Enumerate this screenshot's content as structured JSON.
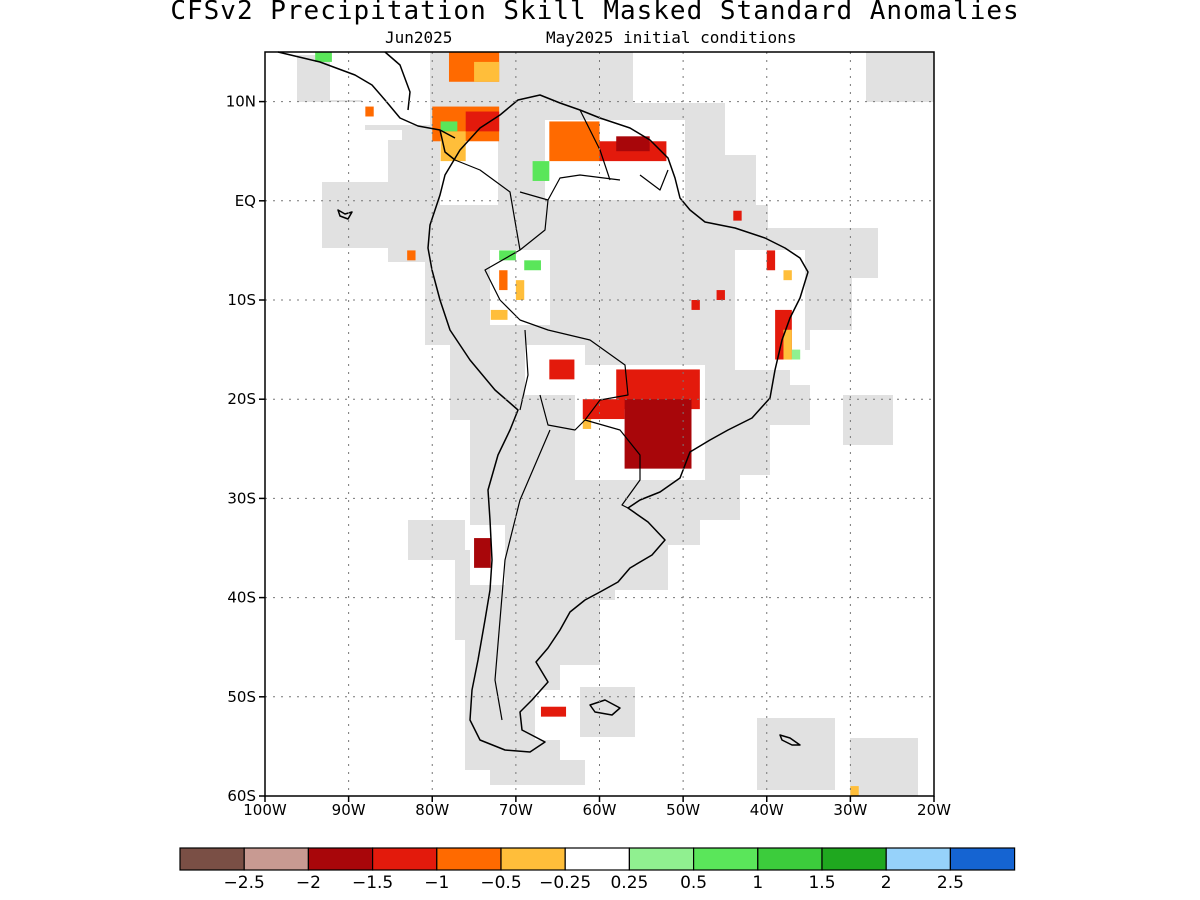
{
  "title": "CFSv2 Precipitation Skill Masked Standard Anomalies",
  "subtitle": {
    "target_month": "Jun2025",
    "initial_conditions": "May2025 initial conditions"
  },
  "map": {
    "region": "South America",
    "lon_range": [
      -100,
      -20
    ],
    "lat_range": [
      -60,
      15
    ],
    "lon_ticks": [
      {
        "lon": -100,
        "label": "100W"
      },
      {
        "lon": -90,
        "label": "90W"
      },
      {
        "lon": -80,
        "label": "80W"
      },
      {
        "lon": -70,
        "label": "70W"
      },
      {
        "lon": -60,
        "label": "60W"
      },
      {
        "lon": -50,
        "label": "50W"
      },
      {
        "lon": -40,
        "label": "40W"
      },
      {
        "lon": -30,
        "label": "30W"
      },
      {
        "lon": -20,
        "label": "20W"
      }
    ],
    "lat_ticks": [
      {
        "lat": 10,
        "label": "10N"
      },
      {
        "lat": 0,
        "label": "EQ"
      },
      {
        "lat": -10,
        "label": "10S"
      },
      {
        "lat": -20,
        "label": "20S"
      },
      {
        "lat": -30,
        "label": "30S"
      },
      {
        "lat": -40,
        "label": "40S"
      },
      {
        "lat": -50,
        "label": "50S"
      },
      {
        "lat": -60,
        "label": "60S"
      }
    ],
    "mask_color": "#e1e1e1",
    "coast_color": "#000000"
  },
  "anomaly_patches": [
    {
      "lon": [
        -80,
        -72
      ],
      "lat": [
        9.5,
        6
      ],
      "color": "#ff6a00"
    },
    {
      "lon": [
        -76,
        -72
      ],
      "lat": [
        9,
        7
      ],
      "color": "#e31a0c"
    },
    {
      "lon": [
        -79,
        -76
      ],
      "lat": [
        7,
        4
      ],
      "color": "#ffbe3a"
    },
    {
      "lon": [
        -78,
        -72
      ],
      "lat": [
        15,
        12
      ],
      "color": "#ff6a00"
    },
    {
      "lon": [
        -75,
        -72
      ],
      "lat": [
        14,
        12
      ],
      "color": "#ffbe3a"
    },
    {
      "lon": [
        -66,
        -60
      ],
      "lat": [
        8,
        4
      ],
      "color": "#ff6a00"
    },
    {
      "lon": [
        -60,
        -52
      ],
      "lat": [
        6,
        4
      ],
      "color": "#e31a0c"
    },
    {
      "lon": [
        -58,
        -54
      ],
      "lat": [
        6.5,
        5
      ],
      "color": "#a8060a"
    },
    {
      "lon": [
        -68,
        -66
      ],
      "lat": [
        4,
        2
      ],
      "color": "#5ae65a"
    },
    {
      "lon": [
        -79,
        -77
      ],
      "lat": [
        8,
        7
      ],
      "color": "#5ae65a"
    },
    {
      "lon": [
        -94,
        -92
      ],
      "lat": [
        15,
        14
      ],
      "color": "#5ae65a"
    },
    {
      "lon": [
        -88,
        -87
      ],
      "lat": [
        9.5,
        8.5
      ],
      "color": "#ff6a00"
    },
    {
      "lon": [
        -83,
        -82
      ],
      "lat": [
        -5,
        -6
      ],
      "color": "#ff6a00"
    },
    {
      "lon": [
        -72,
        -71
      ],
      "lat": [
        -7,
        -9
      ],
      "color": "#ff6a00"
    },
    {
      "lon": [
        -70,
        -69
      ],
      "lat": [
        -8,
        -10
      ],
      "color": "#ffbe3a"
    },
    {
      "lon": [
        -72,
        -70
      ],
      "lat": [
        -5,
        -6
      ],
      "color": "#5ae65a"
    },
    {
      "lon": [
        -69,
        -67
      ],
      "lat": [
        -6,
        -7
      ],
      "color": "#5ae65a"
    },
    {
      "lon": [
        -73,
        -71
      ],
      "lat": [
        -11,
        -12
      ],
      "color": "#ffbe3a"
    },
    {
      "lon": [
        -66,
        -63
      ],
      "lat": [
        -16,
        -18
      ],
      "color": "#e31a0c"
    },
    {
      "lon": [
        -58,
        -48
      ],
      "lat": [
        -17,
        -21
      ],
      "color": "#e31a0c"
    },
    {
      "lon": [
        -57,
        -49
      ],
      "lat": [
        -20,
        -27
      ],
      "color": "#a8060a"
    },
    {
      "lon": [
        -62,
        -57
      ],
      "lat": [
        -20,
        -22
      ],
      "color": "#e31a0c"
    },
    {
      "lon": [
        -62,
        -61
      ],
      "lat": [
        -22,
        -23
      ],
      "color": "#ffbe3a"
    },
    {
      "lon": [
        -39,
        -37
      ],
      "lat": [
        -11,
        -16
      ],
      "color": "#e31a0c"
    },
    {
      "lon": [
        -38,
        -37
      ],
      "lat": [
        -13,
        -16
      ],
      "color": "#ffbe3a"
    },
    {
      "lon": [
        -37,
        -36
      ],
      "lat": [
        -15,
        -16
      ],
      "color": "#90f090"
    },
    {
      "lon": [
        -40,
        -39
      ],
      "lat": [
        -5,
        -7
      ],
      "color": "#e31a0c"
    },
    {
      "lon": [
        -44,
        -43
      ],
      "lat": [
        -1,
        -2
      ],
      "color": "#e31a0c"
    },
    {
      "lon": [
        -46,
        -45
      ],
      "lat": [
        -9,
        -10
      ],
      "color": "#e31a0c"
    },
    {
      "lon": [
        -49,
        -48
      ],
      "lat": [
        -10,
        -11
      ],
      "color": "#e31a0c"
    },
    {
      "lon": [
        -38,
        -37
      ],
      "lat": [
        -7,
        -8
      ],
      "color": "#ffbe3a"
    },
    {
      "lon": [
        -75,
        -73
      ],
      "lat": [
        -34,
        -37
      ],
      "color": "#a8060a"
    },
    {
      "lon": [
        -67,
        -64
      ],
      "lat": [
        -51,
        -52
      ],
      "color": "#e31a0c"
    },
    {
      "lon": [
        -30,
        -29
      ],
      "lat": [
        -59,
        -60
      ],
      "color": "#ffbe3a"
    }
  ],
  "colorbar": {
    "colors": [
      "#7a4f45",
      "#c89a92",
      "#a8060a",
      "#e31a0c",
      "#ff6a00",
      "#ffbe3a",
      "#ffffff",
      "#90f090",
      "#5ae65a",
      "#3ccc3c",
      "#1fa81f",
      "#96d2fa",
      "#1564d2"
    ],
    "labels": [
      "-2.5",
      "-2",
      "-1.5",
      "-1",
      "-0.5",
      "-0.25",
      "0.25",
      "0.5",
      "1",
      "1.5",
      "2",
      "2.5"
    ]
  }
}
